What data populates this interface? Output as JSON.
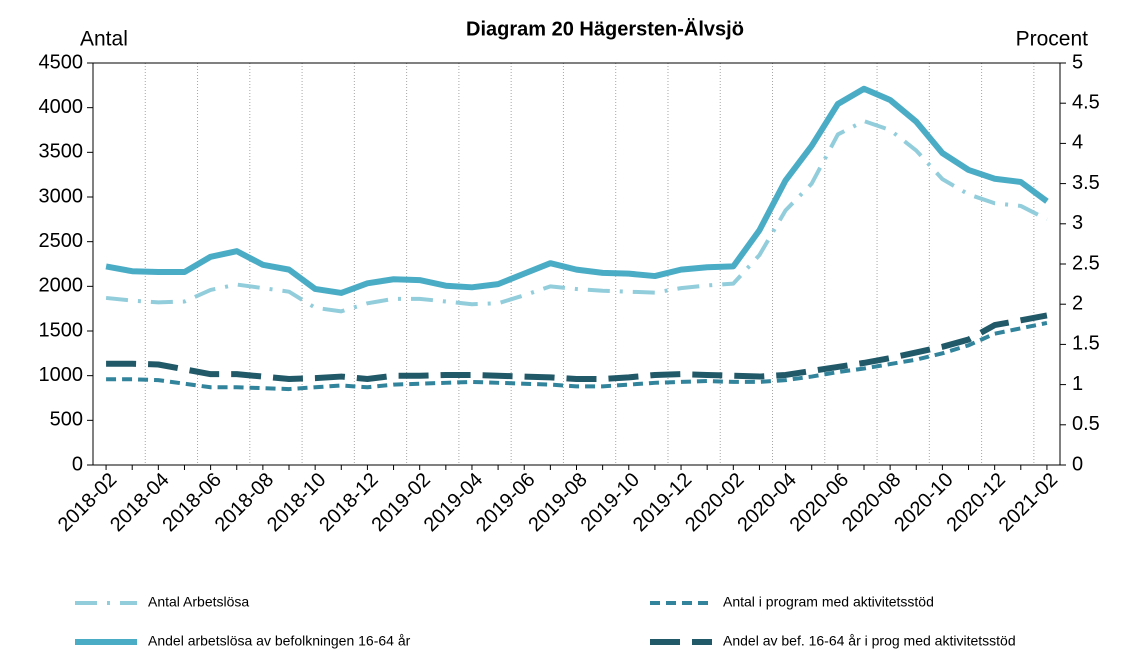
{
  "chart_data": {
    "type": "line",
    "title": "Diagram 20 Hägersten-Älvsjö",
    "y_label": "Antal",
    "y2_label": "Procent",
    "categories": [
      "2018-02",
      null,
      "2018-04",
      null,
      "2018-06",
      null,
      "2018-08",
      null,
      "2018-10",
      null,
      "2018-12",
      null,
      "2019-02",
      null,
      "2019-04",
      null,
      "2019-06",
      null,
      "2019-08",
      null,
      "2019-10",
      null,
      "2019-12",
      null,
      "2020-02",
      null,
      "2020-04",
      null,
      "2020-06",
      null,
      "2020-08",
      null,
      "2020-10",
      null,
      "2020-12",
      null,
      "2021-02"
    ],
    "ylim": [
      0,
      4500
    ],
    "yticks": [
      0,
      500,
      1000,
      1500,
      2000,
      2500,
      3000,
      3500,
      4000,
      4500
    ],
    "y2lim": [
      0,
      5
    ],
    "y2ticks": [
      0,
      0.5,
      1,
      1.5,
      2,
      2.5,
      3,
      3.5,
      4,
      4.5,
      5
    ],
    "series": [
      {
        "name": "Antal Arbetslösa",
        "color": "#92cddc",
        "dash": "dashdot",
        "width": 4,
        "axis": "y",
        "values": [
          1870,
          1840,
          1820,
          1830,
          1960,
          2020,
          1980,
          1940,
          1760,
          1720,
          1810,
          1860,
          1860,
          1830,
          1800,
          1810,
          1900,
          2000,
          1970,
          1950,
          1940,
          1930,
          1980,
          2010,
          2030,
          2350,
          2850,
          3150,
          3700,
          3850,
          3750,
          3520,
          3200,
          3030,
          2930,
          2900,
          2750
        ]
      },
      {
        "name": "Antal i program med aktivitetsstöd",
        "color": "#31849b",
        "dash": "dash",
        "width": 4,
        "axis": "y",
        "values": [
          960,
          960,
          950,
          910,
          870,
          870,
          860,
          850,
          870,
          890,
          870,
          900,
          910,
          920,
          930,
          920,
          910,
          900,
          880,
          880,
          900,
          920,
          930,
          940,
          930,
          930,
          950,
          990,
          1040,
          1080,
          1130,
          1180,
          1250,
          1340,
          1470,
          1530,
          1590
        ]
      },
      {
        "name": "Andel arbetslösa av befolkningen 16-64 år",
        "color": "#4bacc6",
        "dash": "solid",
        "width": 6,
        "axis": "y2",
        "values": [
          2.47,
          2.41,
          2.4,
          2.4,
          2.59,
          2.66,
          2.49,
          2.43,
          2.19,
          2.14,
          2.26,
          2.31,
          2.3,
          2.23,
          2.21,
          2.25,
          2.38,
          2.51,
          2.43,
          2.39,
          2.38,
          2.35,
          2.43,
          2.46,
          2.47,
          2.92,
          3.54,
          3.97,
          4.49,
          4.68,
          4.54,
          4.27,
          3.88,
          3.67,
          3.56,
          3.52,
          3.28
        ]
      },
      {
        "name": "Andel av bef. 16-64 år i prog med aktivitetsstöd",
        "color": "#215968",
        "dash": "longdash",
        "width": 6,
        "axis": "y2",
        "values": [
          1.26,
          1.26,
          1.25,
          1.19,
          1.13,
          1.13,
          1.1,
          1.07,
          1.08,
          1.1,
          1.07,
          1.11,
          1.11,
          1.12,
          1.12,
          1.11,
          1.1,
          1.09,
          1.07,
          1.07,
          1.09,
          1.12,
          1.13,
          1.12,
          1.11,
          1.1,
          1.12,
          1.17,
          1.22,
          1.27,
          1.33,
          1.4,
          1.47,
          1.56,
          1.74,
          1.8,
          1.86
        ]
      }
    ]
  }
}
